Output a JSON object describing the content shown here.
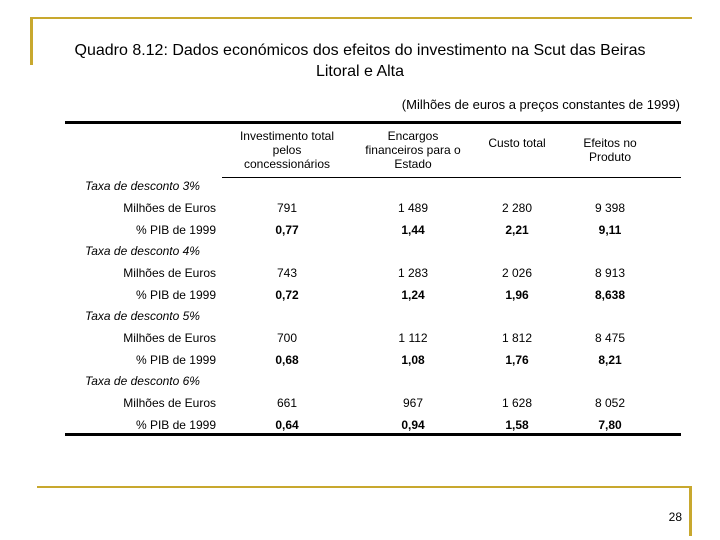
{
  "title": "Quadro 8.12: Dados económicos dos efeitos do investimento na Scut das Beiras Litoral e Alta",
  "subtitle": "(Milhões de euros a preços constantes de 1999)",
  "table": {
    "headers": [
      "Investimento total pelos concessionários",
      "Encargos financeiros para o Estado",
      "Custo total",
      "Efeitos no Produto"
    ],
    "groups": [
      {
        "label": "Taxa de desconto 3%",
        "rows": [
          {
            "label": "Milhões de Euros",
            "cells": [
              "791",
              "1 489",
              "2 280",
              "9 398"
            ]
          },
          {
            "label": "% PIB de 1999",
            "cells": [
              "0,77",
              "1,44",
              "2,21",
              "9,11"
            ]
          }
        ]
      },
      {
        "label": "Taxa de desconto 4%",
        "rows": [
          {
            "label": "Milhões de Euros",
            "cells": [
              "743",
              "1 283",
              "2 026",
              "8 913"
            ]
          },
          {
            "label": "% PIB de 1999",
            "cells": [
              "0,72",
              "1,24",
              "1,96",
              "8,638"
            ]
          }
        ]
      },
      {
        "label": "Taxa de desconto 5%",
        "rows": [
          {
            "label": "Milhões de Euros",
            "cells": [
              "700",
              "1 112",
              "1 812",
              "8 475"
            ]
          },
          {
            "label": "% PIB de 1999",
            "cells": [
              "0,68",
              "1,08",
              "1,76",
              "8,21"
            ]
          }
        ]
      },
      {
        "label": "Taxa de desconto 6%",
        "rows": [
          {
            "label": "Milhões de Euros",
            "cells": [
              "661",
              "967",
              "1 628",
              "8 052"
            ]
          },
          {
            "label": "% PIB de 1999",
            "cells": [
              "0,64",
              "0,94",
              "1,58",
              "7,80"
            ]
          }
        ]
      }
    ]
  },
  "page_number": "28"
}
